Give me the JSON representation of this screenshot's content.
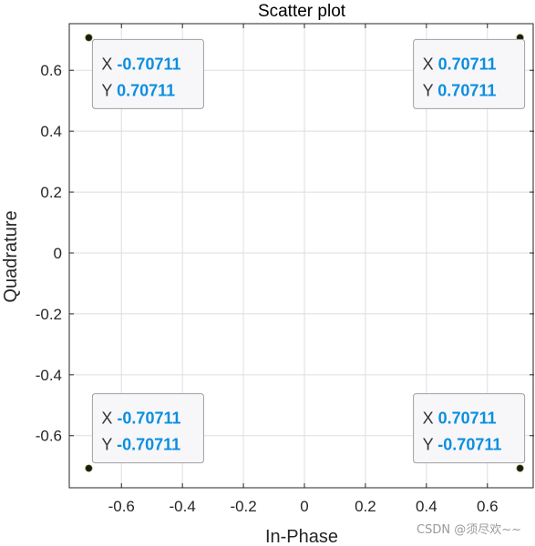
{
  "chart_data": {
    "type": "scatter",
    "title": "Scatter plot",
    "xlabel": "In-Phase",
    "ylabel": "Quadrature",
    "xlim": [
      -0.7711,
      0.7531
    ],
    "ylim": [
      -0.7711,
      0.7531
    ],
    "xticks": [
      -0.6,
      -0.4,
      -0.2,
      0,
      0.2,
      0.4,
      0.6
    ],
    "xtick_labels": [
      "-0.6",
      "-0.4",
      "-0.2",
      "0",
      "0.2",
      "0.4",
      "0.6"
    ],
    "yticks": [
      -0.6,
      -0.4,
      -0.2,
      0,
      0.2,
      0.4,
      0.6
    ],
    "ytick_labels": [
      "-0.6",
      "-0.4",
      "-0.2",
      "0",
      "0.2",
      "0.4",
      "0.6"
    ],
    "grid": true,
    "points": [
      {
        "x": -0.70711,
        "y": 0.70711
      },
      {
        "x": 0.70711,
        "y": 0.70711
      },
      {
        "x": -0.70711,
        "y": -0.70711
      },
      {
        "x": 0.70711,
        "y": -0.70711
      }
    ],
    "datatips": [
      {
        "x_key": "X",
        "x_value": "-0.70711",
        "y_key": "Y",
        "y_value": "0.70711"
      },
      {
        "x_key": "X",
        "x_value": "0.70711",
        "y_key": "Y",
        "y_value": "0.70711"
      },
      {
        "x_key": "X",
        "x_value": "-0.70711",
        "y_key": "Y",
        "y_value": "-0.70711"
      },
      {
        "x_key": "X",
        "x_value": "0.70711",
        "y_key": "Y",
        "y_value": "-0.70711"
      }
    ],
    "colors": {
      "marker": "#1a1a1a",
      "value_text": "#0a8fe0",
      "grid": "#dedede",
      "axes": "#262626",
      "tip_fill": "#f7f7fa",
      "tip_border": "#a0a0a0"
    }
  },
  "watermark": "CSDN @须尽欢~~"
}
